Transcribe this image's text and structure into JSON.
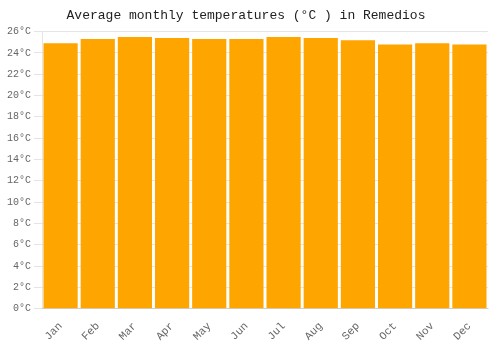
{
  "chart_data": {
    "type": "bar",
    "title": "Average monthly temperatures (°C ) in Remedios",
    "categories": [
      "Jan",
      "Feb",
      "Mar",
      "Apr",
      "May",
      "Jun",
      "Jul",
      "Aug",
      "Sep",
      "Oct",
      "Nov",
      "Dec"
    ],
    "values": [
      24.9,
      25.3,
      25.5,
      25.4,
      25.3,
      25.3,
      25.5,
      25.4,
      25.2,
      24.8,
      24.9,
      24.8
    ],
    "color": "#FFA500",
    "ylim": [
      0,
      26
    ],
    "yticks": [
      {
        "value": 0,
        "label": "0°C"
      },
      {
        "value": 2,
        "label": "2°C"
      },
      {
        "value": 4,
        "label": "4°C"
      },
      {
        "value": 6,
        "label": "6°C"
      },
      {
        "value": 8,
        "label": "8°C"
      },
      {
        "value": 10,
        "label": "10°C"
      },
      {
        "value": 12,
        "label": "12°C"
      },
      {
        "value": 14,
        "label": "14°C"
      },
      {
        "value": 16,
        "label": "16°C"
      },
      {
        "value": 18,
        "label": "18°C"
      },
      {
        "value": 20,
        "label": "20°C"
      },
      {
        "value": 22,
        "label": "22°C"
      },
      {
        "value": 24,
        "label": "24°C"
      },
      {
        "value": 26,
        "label": "26°C"
      }
    ],
    "grid": true
  }
}
